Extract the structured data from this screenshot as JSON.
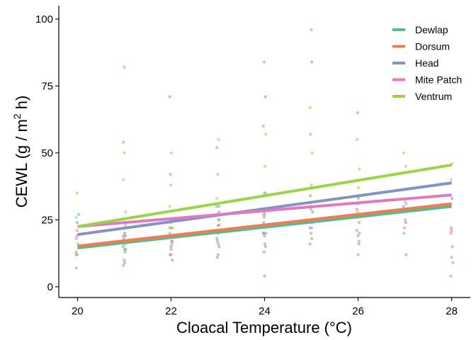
{
  "chart_data": {
    "type": "scatter",
    "xlabel": "Cloacal Temperature (°C)",
    "ylabel_main": "CEWL (g / m",
    "ylabel_sup": "2",
    "ylabel_tail": " h)",
    "xlim": [
      19.6,
      28.4
    ],
    "ylim": [
      -4,
      105
    ],
    "x_ticks": [
      20,
      22,
      24,
      26,
      28
    ],
    "y_ticks": [
      0,
      25,
      50,
      75,
      100
    ],
    "grid": false,
    "legend_position": "top-right",
    "series": [
      {
        "name": "Dewlap",
        "color": "#5bb88f",
        "line": [
          [
            20,
            14.5
          ],
          [
            28,
            30
          ]
        ],
        "points": [
          [
            20,
            7
          ],
          [
            20,
            12
          ],
          [
            20,
            16
          ],
          [
            20,
            27
          ],
          [
            21,
            8
          ],
          [
            21,
            10
          ],
          [
            21,
            13
          ],
          [
            21,
            15
          ],
          [
            21,
            18
          ],
          [
            21,
            20
          ],
          [
            22,
            10
          ],
          [
            22,
            12
          ],
          [
            22,
            14
          ],
          [
            22,
            17
          ],
          [
            22,
            20
          ],
          [
            22,
            24
          ],
          [
            23,
            12
          ],
          [
            23,
            15
          ],
          [
            23,
            18
          ],
          [
            23,
            21
          ],
          [
            23,
            25
          ],
          [
            23,
            30
          ],
          [
            24,
            13
          ],
          [
            24,
            16
          ],
          [
            24,
            20
          ],
          [
            24,
            24
          ],
          [
            24,
            28
          ],
          [
            24,
            35
          ],
          [
            25,
            16
          ],
          [
            25,
            20
          ],
          [
            25,
            24
          ],
          [
            25,
            28
          ],
          [
            25,
            34
          ],
          [
            26,
            12
          ],
          [
            26,
            16
          ],
          [
            26,
            21
          ],
          [
            26,
            26
          ],
          [
            26,
            33
          ],
          [
            27,
            12
          ],
          [
            27,
            20
          ],
          [
            28,
            11
          ],
          [
            28,
            15
          ]
        ]
      },
      {
        "name": "Dorsum",
        "color": "#f07c52",
        "line": [
          [
            20,
            15.2
          ],
          [
            28,
            31
          ]
        ],
        "points": [
          [
            20,
            13
          ],
          [
            20,
            21
          ],
          [
            21,
            9
          ],
          [
            21,
            14
          ],
          [
            21,
            19
          ],
          [
            22,
            12
          ],
          [
            22,
            17
          ],
          [
            22,
            22
          ],
          [
            23,
            11
          ],
          [
            23,
            16
          ],
          [
            23,
            23
          ],
          [
            23,
            27
          ],
          [
            24,
            4
          ],
          [
            24,
            15
          ],
          [
            24,
            20
          ],
          [
            24,
            26
          ],
          [
            25,
            18
          ],
          [
            25,
            24
          ],
          [
            25,
            30
          ],
          [
            26,
            19
          ],
          [
            26,
            24
          ],
          [
            26,
            29
          ],
          [
            27,
            22
          ],
          [
            27,
            29
          ],
          [
            28,
            9
          ],
          [
            28,
            20
          ]
        ]
      },
      {
        "name": "Head",
        "color": "#8592c4",
        "line": [
          [
            20,
            19.5
          ],
          [
            28,
            38.8
          ]
        ],
        "points": [
          [
            20,
            18
          ],
          [
            20,
            24
          ],
          [
            21,
            14
          ],
          [
            21,
            19
          ],
          [
            21,
            24
          ],
          [
            22,
            15
          ],
          [
            22,
            22
          ],
          [
            22,
            71
          ],
          [
            23,
            17
          ],
          [
            23,
            23
          ],
          [
            23,
            30
          ],
          [
            24,
            20
          ],
          [
            24,
            27
          ],
          [
            24,
            71
          ],
          [
            25,
            22
          ],
          [
            25,
            29
          ],
          [
            25,
            84
          ],
          [
            26,
            20
          ],
          [
            26,
            26
          ],
          [
            26,
            31
          ],
          [
            27,
            24
          ],
          [
            27,
            30
          ],
          [
            28,
            22
          ],
          [
            28,
            33
          ]
        ]
      },
      {
        "name": "Mite Patch",
        "color": "#e079c0",
        "line": [
          [
            20,
            22.5
          ],
          [
            28,
            34.3
          ]
        ],
        "points": [
          [
            20,
            12
          ],
          [
            20,
            19
          ],
          [
            21,
            16
          ],
          [
            21,
            23
          ],
          [
            21,
            54
          ],
          [
            21,
            82
          ],
          [
            22,
            16
          ],
          [
            22,
            25
          ],
          [
            22,
            42
          ],
          [
            23,
            20
          ],
          [
            23,
            28
          ],
          [
            23,
            52
          ],
          [
            24,
            19
          ],
          [
            24,
            29
          ],
          [
            24,
            60
          ],
          [
            24,
            84
          ],
          [
            25,
            22
          ],
          [
            25,
            30
          ],
          [
            25,
            57
          ],
          [
            25,
            96
          ],
          [
            26,
            17
          ],
          [
            26,
            27
          ],
          [
            26,
            65
          ],
          [
            27,
            25
          ],
          [
            27,
            31
          ],
          [
            28,
            4
          ],
          [
            28,
            21
          ]
        ]
      },
      {
        "name": "Ventrum",
        "color": "#9bd446",
        "line": [
          [
            20,
            22.5
          ],
          [
            28,
            45.5
          ]
        ],
        "points": [
          [
            20,
            26
          ],
          [
            20,
            35
          ],
          [
            21,
            20
          ],
          [
            21,
            28
          ],
          [
            21,
            40
          ],
          [
            21,
            50
          ],
          [
            22,
            22
          ],
          [
            22,
            30
          ],
          [
            22,
            38
          ],
          [
            22,
            50
          ],
          [
            23,
            25
          ],
          [
            23,
            33
          ],
          [
            23,
            42
          ],
          [
            23,
            55
          ],
          [
            24,
            27
          ],
          [
            24,
            35
          ],
          [
            24,
            45
          ],
          [
            24,
            57
          ],
          [
            25,
            30
          ],
          [
            25,
            38
          ],
          [
            25,
            50
          ],
          [
            25,
            67
          ],
          [
            26,
            28
          ],
          [
            26,
            37
          ],
          [
            26,
            44
          ],
          [
            26,
            55
          ],
          [
            27,
            32
          ],
          [
            27,
            45
          ],
          [
            27,
            50
          ],
          [
            28,
            40
          ],
          [
            28,
            46
          ]
        ]
      }
    ]
  }
}
